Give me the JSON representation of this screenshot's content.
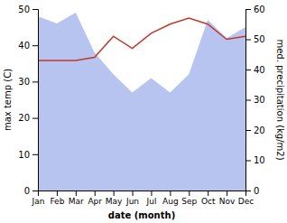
{
  "chart_data": {
    "type": "line",
    "categories": [
      "Jan",
      "Feb",
      "Mar",
      "Apr",
      "May",
      "Jun",
      "Jul",
      "Aug",
      "Sep",
      "Oct",
      "Nov",
      "Dec"
    ],
    "xlabel": "date (month)",
    "ylabel": "max temp (C)",
    "y2label": "med. precipitation (kg/m2)",
    "ylim": [
      0,
      50
    ],
    "yticks": [
      0,
      10,
      20,
      30,
      40,
      50
    ],
    "y2lim": [
      0,
      60
    ],
    "y2ticks": [
      0,
      10,
      20,
      30,
      40,
      50,
      60
    ],
    "grid": false,
    "series": [
      {
        "type": "area",
        "color": "#b8c4f0",
        "values": [
          48,
          46,
          49,
          38,
          32,
          27,
          31,
          27,
          32,
          47,
          42,
          45
        ]
      },
      {
        "type": "line",
        "color": "#c0392b",
        "axis": "y2",
        "values": [
          43,
          43,
          43,
          44,
          51,
          47,
          52,
          55,
          57,
          55,
          50,
          51
        ]
      }
    ]
  }
}
